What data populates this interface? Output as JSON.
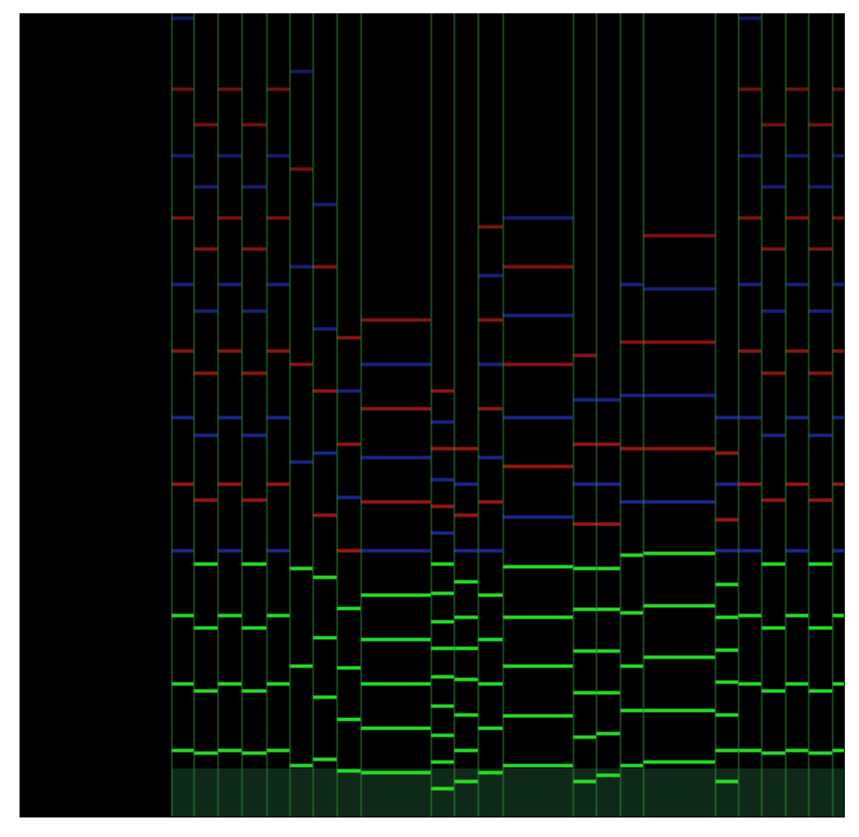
{
  "chart_data": {
    "type": "spectrogram",
    "tick_labels": false,
    "xlim": [
      0,
      928
    ],
    "ylim": [
      0,
      905
    ],
    "notes": [
      {
        "start": 171,
        "end": 196,
        "partials": [
          75,
          150,
          227,
          300,
          375,
          450,
          525,
          600,
          675,
          745,
          820,
          900
        ]
      },
      {
        "start": 196,
        "end": 223,
        "partials": [
          72,
          142,
          213,
          285,
          357,
          430,
          500,
          570,
          640,
          710,
          780
        ]
      },
      {
        "start": 223,
        "end": 250,
        "partials": [
          75,
          150,
          227,
          300,
          375,
          450,
          525,
          600,
          675,
          745,
          820
        ]
      },
      {
        "start": 250,
        "end": 278,
        "partials": [
          72,
          142,
          213,
          285,
          357,
          430,
          500,
          570,
          640,
          710,
          780
        ]
      },
      {
        "start": 278,
        "end": 304,
        "partials": [
          75,
          150,
          227,
          300,
          375,
          450,
          525,
          600,
          675,
          745,
          820
        ]
      },
      {
        "start": 304,
        "end": 330,
        "partials": [
          58,
          170,
          280,
          400,
          510,
          620,
          730,
          840
        ]
      },
      {
        "start": 330,
        "end": 357,
        "partials": [
          65,
          135,
          202,
          270,
          340,
          410,
          480,
          550,
          620,
          690
        ]
      },
      {
        "start": 357,
        "end": 384,
        "partials": [
          52,
          110,
          168,
          235,
          300,
          360,
          420,
          480,
          540
        ]
      },
      {
        "start": 384,
        "end": 463,
        "partials": [
          50,
          100,
          150,
          200,
          250,
          300,
          355,
          405,
          460,
          510,
          560
        ]
      },
      {
        "start": 463,
        "end": 489,
        "partials": [
          32,
          62,
          92,
          125,
          158,
          190,
          220,
          252,
          285,
          320,
          350,
          380,
          415,
          445,
          480
        ]
      },
      {
        "start": 489,
        "end": 516,
        "partials": [
          40,
          75,
          115,
          155,
          190,
          225,
          265,
          300,
          340,
          375,
          415
        ]
      },
      {
        "start": 516,
        "end": 544,
        "partials": [
          50,
          100,
          150,
          200,
          250,
          300,
          355,
          405,
          460,
          510,
          560,
          610,
          665
        ]
      },
      {
        "start": 544,
        "end": 623,
        "partials": [
          58,
          114,
          170,
          225,
          282,
          338,
          395,
          450,
          510,
          565,
          620,
          675
        ]
      },
      {
        "start": 623,
        "end": 649,
        "partials": [
          40,
          90,
          140,
          187,
          234,
          280,
          330,
          375,
          420,
          470,
          520
        ]
      },
      {
        "start": 649,
        "end": 676,
        "partials": [
          47,
          94,
          140,
          187,
          234,
          280,
          330,
          375,
          420,
          470
        ]
      },
      {
        "start": 676,
        "end": 702,
        "partials": [
          58,
          120,
          170,
          230,
          295,
          355,
          415,
          475,
          535,
          600
        ]
      },
      {
        "start": 702,
        "end": 783,
        "partials": [
          62,
          120,
          180,
          238,
          297,
          355,
          415,
          475,
          535,
          595,
          655
        ]
      },
      {
        "start": 783,
        "end": 809,
        "partials": [
          40,
          75,
          115,
          152,
          188,
          225,
          262,
          300,
          335,
          375,
          410,
          450
        ]
      },
      {
        "start": 809,
        "end": 835,
        "partials": [
          75,
          150,
          227,
          300,
          375,
          450,
          525,
          600,
          675,
          745,
          820,
          900
        ]
      },
      {
        "start": 835,
        "end": 862,
        "partials": [
          72,
          142,
          213,
          285,
          357,
          430,
          500,
          570,
          640,
          710,
          780
        ]
      },
      {
        "start": 862,
        "end": 888,
        "partials": [
          75,
          150,
          227,
          300,
          375,
          450,
          525,
          600,
          675,
          745,
          820
        ]
      },
      {
        "start": 888,
        "end": 915,
        "partials": [
          72,
          142,
          213,
          285,
          357,
          430,
          500,
          570,
          640,
          710,
          780
        ]
      },
      {
        "start": 915,
        "end": 928,
        "partials": [
          75,
          150,
          227,
          300,
          375,
          450,
          525,
          600,
          675,
          745,
          820
        ]
      }
    ]
  }
}
